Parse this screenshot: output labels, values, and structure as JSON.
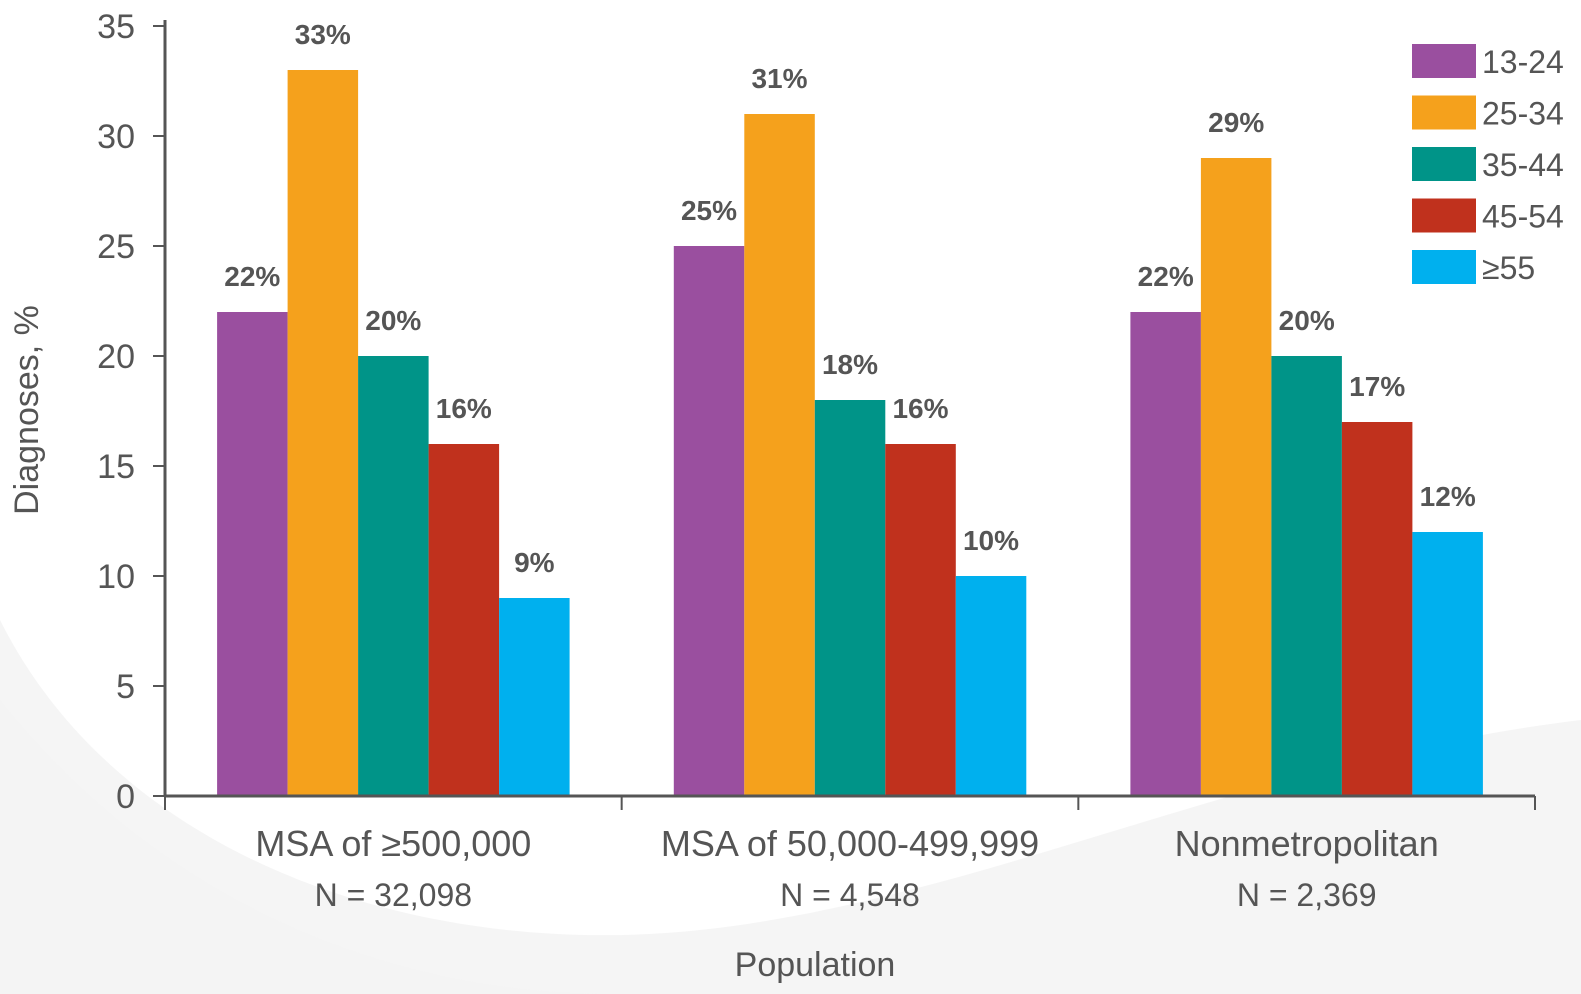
{
  "chart_data": {
    "type": "bar",
    "categories": [
      "MSA of ≥500,000",
      "MSA of 50,000-499,999",
      "Nonmetropolitan"
    ],
    "category_sublabels": [
      "N = 32,098",
      "N = 4,548",
      "N = 2,369"
    ],
    "series": [
      {
        "name": "13-24",
        "color": "#9a4f9f",
        "values": [
          22,
          25,
          22
        ],
        "labels": [
          "22%",
          "25%",
          "22%"
        ]
      },
      {
        "name": "25-34",
        "color": "#f5a11c",
        "values": [
          33,
          31,
          29
        ],
        "labels": [
          "33%",
          "31%",
          "29%"
        ]
      },
      {
        "name": "35-44",
        "color": "#009488",
        "values": [
          20,
          18,
          20
        ],
        "labels": [
          "20%",
          "18%",
          "20%"
        ]
      },
      {
        "name": "45-54",
        "color": "#c0311d",
        "values": [
          16,
          16,
          17
        ],
        "labels": [
          "16%",
          "16%",
          "17%"
        ]
      },
      {
        "name": "≥55",
        "color": "#00b0ee",
        "values": [
          9,
          10,
          12
        ],
        "labels": [
          "9%",
          "10%",
          "12%"
        ]
      }
    ],
    "title": "",
    "xlabel": "Population",
    "ylabel": "Diagnoses, %",
    "ylim": [
      0,
      35
    ],
    "yticks": [
      0,
      5,
      10,
      15,
      20,
      25,
      30,
      35
    ],
    "grid": false,
    "legend_position": "top-right",
    "background_swoosh_color": "#ececec",
    "axis_color": "#555555"
  }
}
